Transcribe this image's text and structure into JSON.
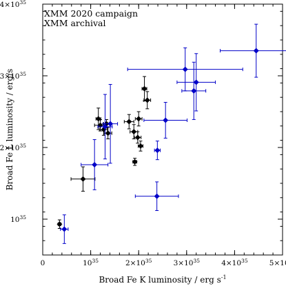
{
  "chart_data": {
    "type": "scatter",
    "xlabel": "Broad Fe K luminosity / erg s",
    "xlabel_sup": "-1",
    "ylabel": "Broad Fe L luminosity / erg/s",
    "xlim": [
      0,
      5e+35
    ],
    "ylim": [
      5e+34,
      4e+35
    ],
    "legend_position": "top-left",
    "x_ticks": [
      {
        "value": 0,
        "label": "0",
        "sup": ""
      },
      {
        "value": 1e+35,
        "label": "10",
        "sup": "35"
      },
      {
        "value": 2e+35,
        "label": "2×10",
        "sup": "35"
      },
      {
        "value": 3e+35,
        "label": "3×10",
        "sup": "35"
      },
      {
        "value": 4e+35,
        "label": "4×10",
        "sup": "35"
      },
      {
        "value": 5e+35,
        "label": "5×10",
        "sup": "35"
      }
    ],
    "y_ticks": [
      {
        "value": 1e+35,
        "label": "10",
        "sup": "35"
      },
      {
        "value": 2e+35,
        "label": "2×10",
        "sup": "35"
      },
      {
        "value": 3e+35,
        "label": "3×10",
        "sup": "35"
      },
      {
        "value": 4e+35,
        "label": "4×10",
        "sup": "35"
      }
    ],
    "series": [
      {
        "name": "XMM 2020 campaign",
        "color": "#000000",
        "points": [
          {
            "x": 3.5e+34,
            "y": 9.3e+34,
            "xerr": [
              3e+33,
              3e+33
            ],
            "yerr": [
              6e+33,
              6e+33
            ]
          },
          {
            "x": 8.4e+34,
            "y": 1.56e+35,
            "xerr": [
              2.5e+34,
              2.5e+34
            ],
            "yerr": [
              1.7e+34,
              1.7e+34
            ]
          },
          {
            "x": 1.16e+35,
            "y": 2.4e+35,
            "xerr": [
              5e+33,
              5e+33
            ],
            "yerr": [
              1.5e+34,
              1.5e+34
            ]
          },
          {
            "x": 1.2e+35,
            "y": 2.31e+35,
            "xerr": [
              1.2e+34,
              1.2e+34
            ],
            "yerr": [
              8e+33,
              8e+33
            ]
          },
          {
            "x": 1.27e+35,
            "y": 2.25e+35,
            "xerr": [
              8e+33,
              8e+33
            ],
            "yerr": [
              8e+33,
              8e+33
            ]
          },
          {
            "x": 1.33e+35,
            "y": 2.33e+35,
            "xerr": [
              6e+33,
              6e+33
            ],
            "yerr": [
              6e+33,
              6e+33
            ]
          },
          {
            "x": 1.36e+35,
            "y": 2.2e+35,
            "xerr": [
              8e+33,
              8e+33
            ],
            "yerr": [
              8e+33,
              8e+33
            ]
          },
          {
            "x": 1.8e+35,
            "y": 2.36e+35,
            "xerr": [
              1e+34,
              1e+34
            ],
            "yerr": [
              1e+34,
              1e+34
            ]
          },
          {
            "x": 1.9e+35,
            "y": 2.22e+35,
            "xerr": [
              8e+33,
              8e+33
            ],
            "yerr": [
              1e+34,
              1e+34
            ]
          },
          {
            "x": 1.92e+35,
            "y": 1.8e+35,
            "xerr": [
              4e+33,
              4e+33
            ],
            "yerr": [
              5e+33,
              5e+33
            ]
          },
          {
            "x": 1.98e+35,
            "y": 2.14e+35,
            "xerr": [
              7e+33,
              7e+33
            ],
            "yerr": [
              8e+33,
              8e+33
            ]
          },
          {
            "x": 2e+35,
            "y": 2.4e+35,
            "xerr": [
              7e+33,
              7e+33
            ],
            "yerr": [
              1e+34,
              1e+34
            ]
          },
          {
            "x": 2.04e+35,
            "y": 2.02e+35,
            "xerr": [
              5e+33,
              5e+33
            ],
            "yerr": [
              7e+33,
              7e+33
            ]
          },
          {
            "x": 2.12e+35,
            "y": 2.82e+35,
            "xerr": [
              5e+33,
              5e+33
            ],
            "yerr": [
              1.7e+34,
              1.7e+34
            ]
          },
          {
            "x": 2.18e+35,
            "y": 2.66e+35,
            "xerr": [
              7e+33,
              7e+33
            ],
            "yerr": [
              1.2e+34,
              1.2e+34
            ]
          }
        ]
      },
      {
        "name": "XMM archival",
        "color": "#0000c8",
        "points": [
          {
            "x": 4.5e+34,
            "y": 8.6e+34,
            "xerr": [
              8e+33,
              8e+33
            ],
            "yerr": [
              2e+34,
              2e+34
            ]
          },
          {
            "x": 1.08e+35,
            "y": 1.76e+35,
            "xerr": [
              2.8e+34,
              2.8e+34
            ],
            "yerr": [
              3.5e+34,
              3.5e+34
            ]
          },
          {
            "x": 1.3e+35,
            "y": 2.29e+35,
            "xerr": [
              1.5e+34,
              1.5e+34
            ],
            "yerr": [
              4.5e+34,
              4.5e+34
            ]
          },
          {
            "x": 1.41e+35,
            "y": 2.33e+35,
            "xerr": [
              1.5e+34,
              1.5e+34
            ],
            "yerr": [
              5.5e+34,
              5.5e+34
            ]
          },
          {
            "x": 2.38e+35,
            "y": 1.32e+35,
            "xerr": [
              4.5e+34,
              4.5e+34
            ],
            "yerr": [
              2e+34,
              2e+34
            ]
          },
          {
            "x": 2.39e+35,
            "y": 1.96e+35,
            "xerr": [
              6e+33,
              6e+33
            ],
            "yerr": [
              1.3e+34,
              1.3e+34
            ]
          },
          {
            "x": 2.56e+35,
            "y": 2.38e+35,
            "xerr": [
              4.5e+34,
              4.5e+34
            ],
            "yerr": [
              2.5e+34,
              2.5e+34
            ]
          },
          {
            "x": 2.97e+35,
            "y": 3.09e+35,
            "xerr": [
              1.2e+35,
              1.2e+35
            ],
            "yerr": [
              3e+34,
              3e+34
            ]
          },
          {
            "x": 3.15e+35,
            "y": 2.79e+35,
            "xerr": [
              2.5e+34,
              2.5e+34
            ],
            "yerr": [
              4e+34,
              4e+34
            ]
          },
          {
            "x": 3.2e+35,
            "y": 2.91e+35,
            "xerr": [
              4e+34,
              4e+34
            ],
            "yerr": [
              4e+34,
              4e+34
            ]
          },
          {
            "x": 4.45e+35,
            "y": 3.35e+35,
            "xerr": [
              7.5e+34,
              7.5e+34
            ],
            "yerr": [
              3.7e+34,
              3.7e+34
            ]
          }
        ]
      }
    ]
  }
}
